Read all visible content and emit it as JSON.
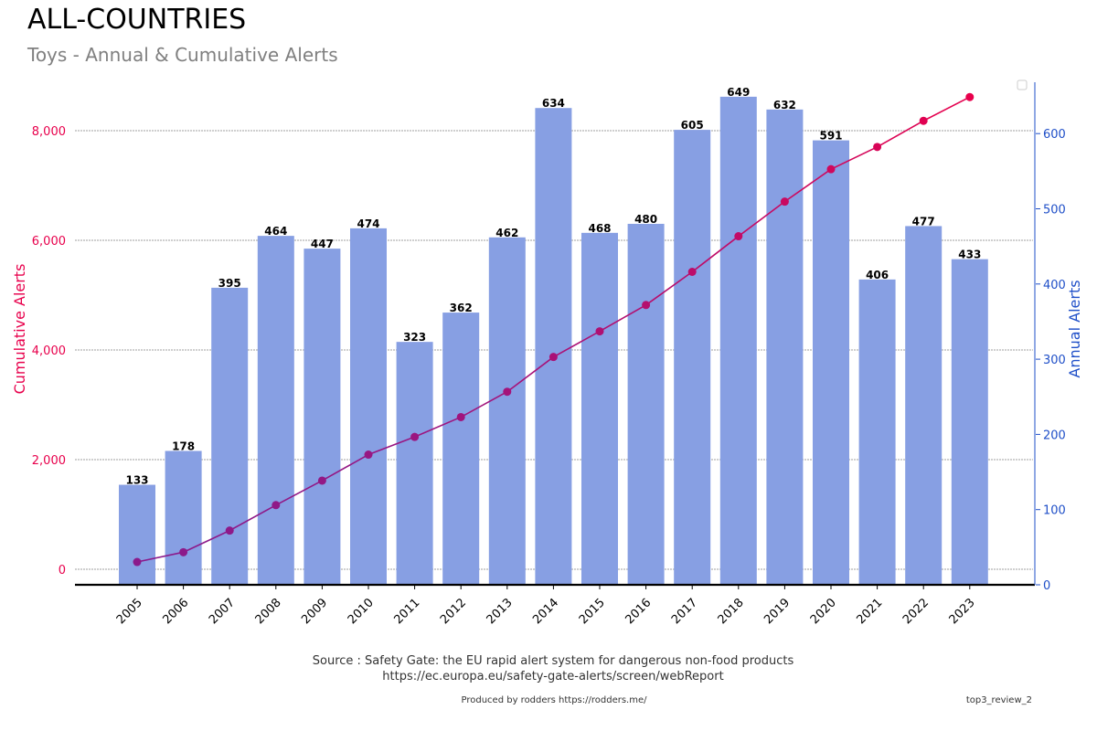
{
  "header": {
    "title": "ALL-COUNTRIES",
    "subtitle": "Toys - Annual & Cumulative Alerts"
  },
  "footer": {
    "source_line1": "Source : Safety Gate: the EU rapid alert system for dangerous non-food products",
    "source_line2": "https://ec.europa.eu/safety-gate-alerts/screen/webReport",
    "credit": "Produced by rodders https://rodders.me/",
    "tag": "top3_review_2"
  },
  "colors": {
    "bar": "#879fe3",
    "line_start": "#8b1a8b",
    "line_end": "#e8004c",
    "left_axis": "#e8004c",
    "right_axis": "#1f4fc8",
    "grid": "#808080"
  },
  "chart_data": {
    "type": "bar",
    "categories": [
      "2005",
      "2006",
      "2007",
      "2008",
      "2009",
      "2010",
      "2011",
      "2012",
      "2013",
      "2014",
      "2015",
      "2016",
      "2017",
      "2018",
      "2019",
      "2020",
      "2021",
      "2022",
      "2023"
    ],
    "series": [
      {
        "name": "Annual Alerts",
        "type": "bar",
        "axis": "right",
        "values": [
          133,
          178,
          395,
          464,
          447,
          474,
          323,
          362,
          462,
          634,
          468,
          480,
          605,
          649,
          632,
          591,
          406,
          477,
          433
        ]
      },
      {
        "name": "Cumulative Alerts",
        "type": "line",
        "axis": "left",
        "values": [
          133,
          311,
          706,
          1170,
          1617,
          2091,
          2414,
          2776,
          3238,
          3872,
          4340,
          4820,
          5425,
          6074,
          6706,
          7297,
          7703,
          8180,
          8613
        ]
      }
    ],
    "ylabel_left": "Cumulative Alerts",
    "ylabel_right": "Annual Alerts",
    "ylim_left": [
      0,
      8613
    ],
    "yticks_left": [
      "0",
      "2,000",
      "4,000",
      "6,000",
      "8,000"
    ],
    "ylim_right": [
      0,
      649
    ],
    "yticks_right": [
      "0",
      "100",
      "200",
      "300",
      "400",
      "500",
      "600"
    ],
    "grid": true,
    "legend": "top-right (empty)"
  }
}
